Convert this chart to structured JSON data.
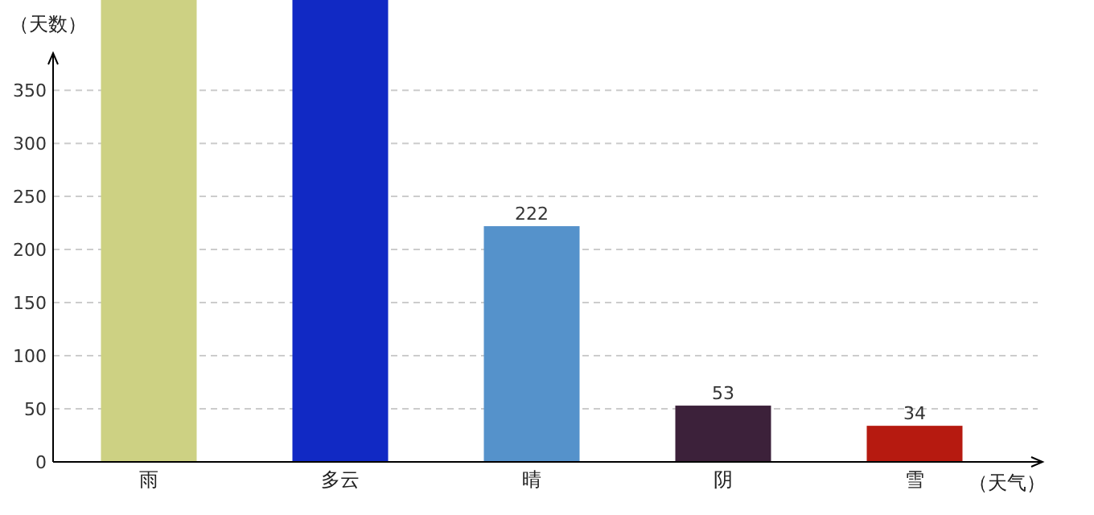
{
  "chart_data": {
    "type": "bar",
    "ylabel": "（天数）",
    "xlabel": "（天气）",
    "categories": [
      "雨",
      "多云",
      "晴",
      "阴",
      "雪"
    ],
    "values": [
      435,
      435,
      222,
      53,
      34
    ],
    "colors": [
      "#cdd183",
      "#1129c4",
      "#5592cb",
      "#3c213a",
      "#b61a10"
    ],
    "value_labels": [
      null,
      null,
      "222",
      "53",
      "34"
    ],
    "ylim": [
      0,
      435
    ],
    "yticks": [
      0,
      50,
      100,
      150,
      200,
      250,
      300,
      350
    ],
    "grid": "y"
  }
}
